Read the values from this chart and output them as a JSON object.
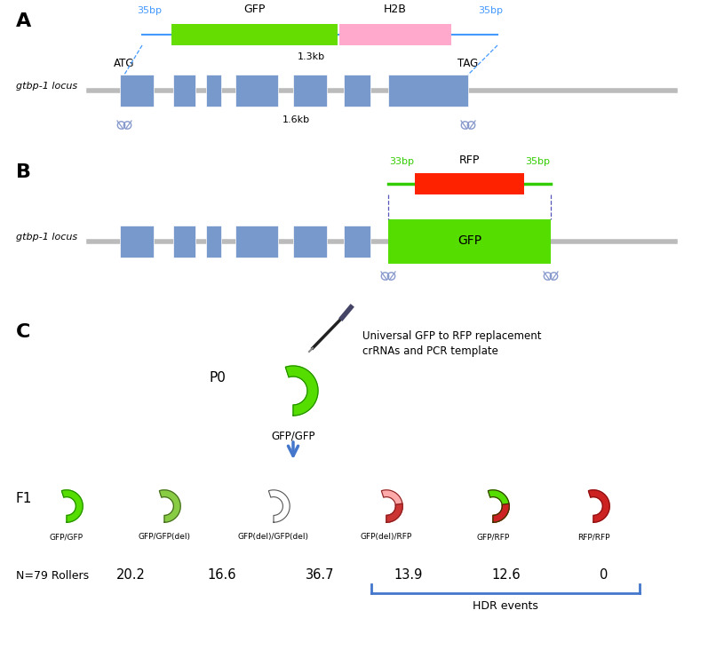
{
  "panel_A": {
    "label": "A",
    "locus_label": "gtbp-1 locus",
    "atg": "ATG",
    "tag": "TAG",
    "gfp_label": "GFP",
    "h2b_label": "H2B",
    "span_label_1_3kb": "1.3kb",
    "span_label_1_6kb": "1.6kb",
    "arm_left": "35bp",
    "arm_right": "35bp",
    "gfp_color": "#66dd00",
    "h2b_color": "#ffaacc",
    "exon_color": "#7799cc",
    "line_color": "#bbbbbb",
    "arm_color": "#4499ff",
    "text_color": "#000000"
  },
  "panel_B": {
    "label": "B",
    "locus_label": "gtbp-1 locus",
    "arm_left": "33bp",
    "arm_right": "35bp",
    "rfp_label": "RFP",
    "gfp_label": "GFP",
    "rfp_color": "#ff2200",
    "gfp_color": "#55dd00",
    "exon_color": "#7799cc",
    "line_color": "#bbbbbb",
    "arm_color": "#33cc00",
    "arm_line_color": "#2222bb"
  },
  "panel_C": {
    "label": "C",
    "p0_label": "P0",
    "p0_genotype": "GFP/GFP",
    "annotation_line1": "Universal GFP to RFP replacement",
    "annotation_line2": "crRNAs and PCR template",
    "f1_label": "F1",
    "n_label": "N=79 Rollers",
    "hdr_label": "HDR events",
    "arrow_color": "#4477cc",
    "f1_genotypes": [
      "GFP/GFP",
      "GFP/GFP(del)",
      "GFP(del)/GFP(del)",
      "GFP(del)/RFP",
      "GFP/RFP",
      "RFP/RFP"
    ],
    "f1_values": [
      "20.2",
      "16.6",
      "36.7",
      "13.9",
      "12.6",
      "0"
    ]
  }
}
